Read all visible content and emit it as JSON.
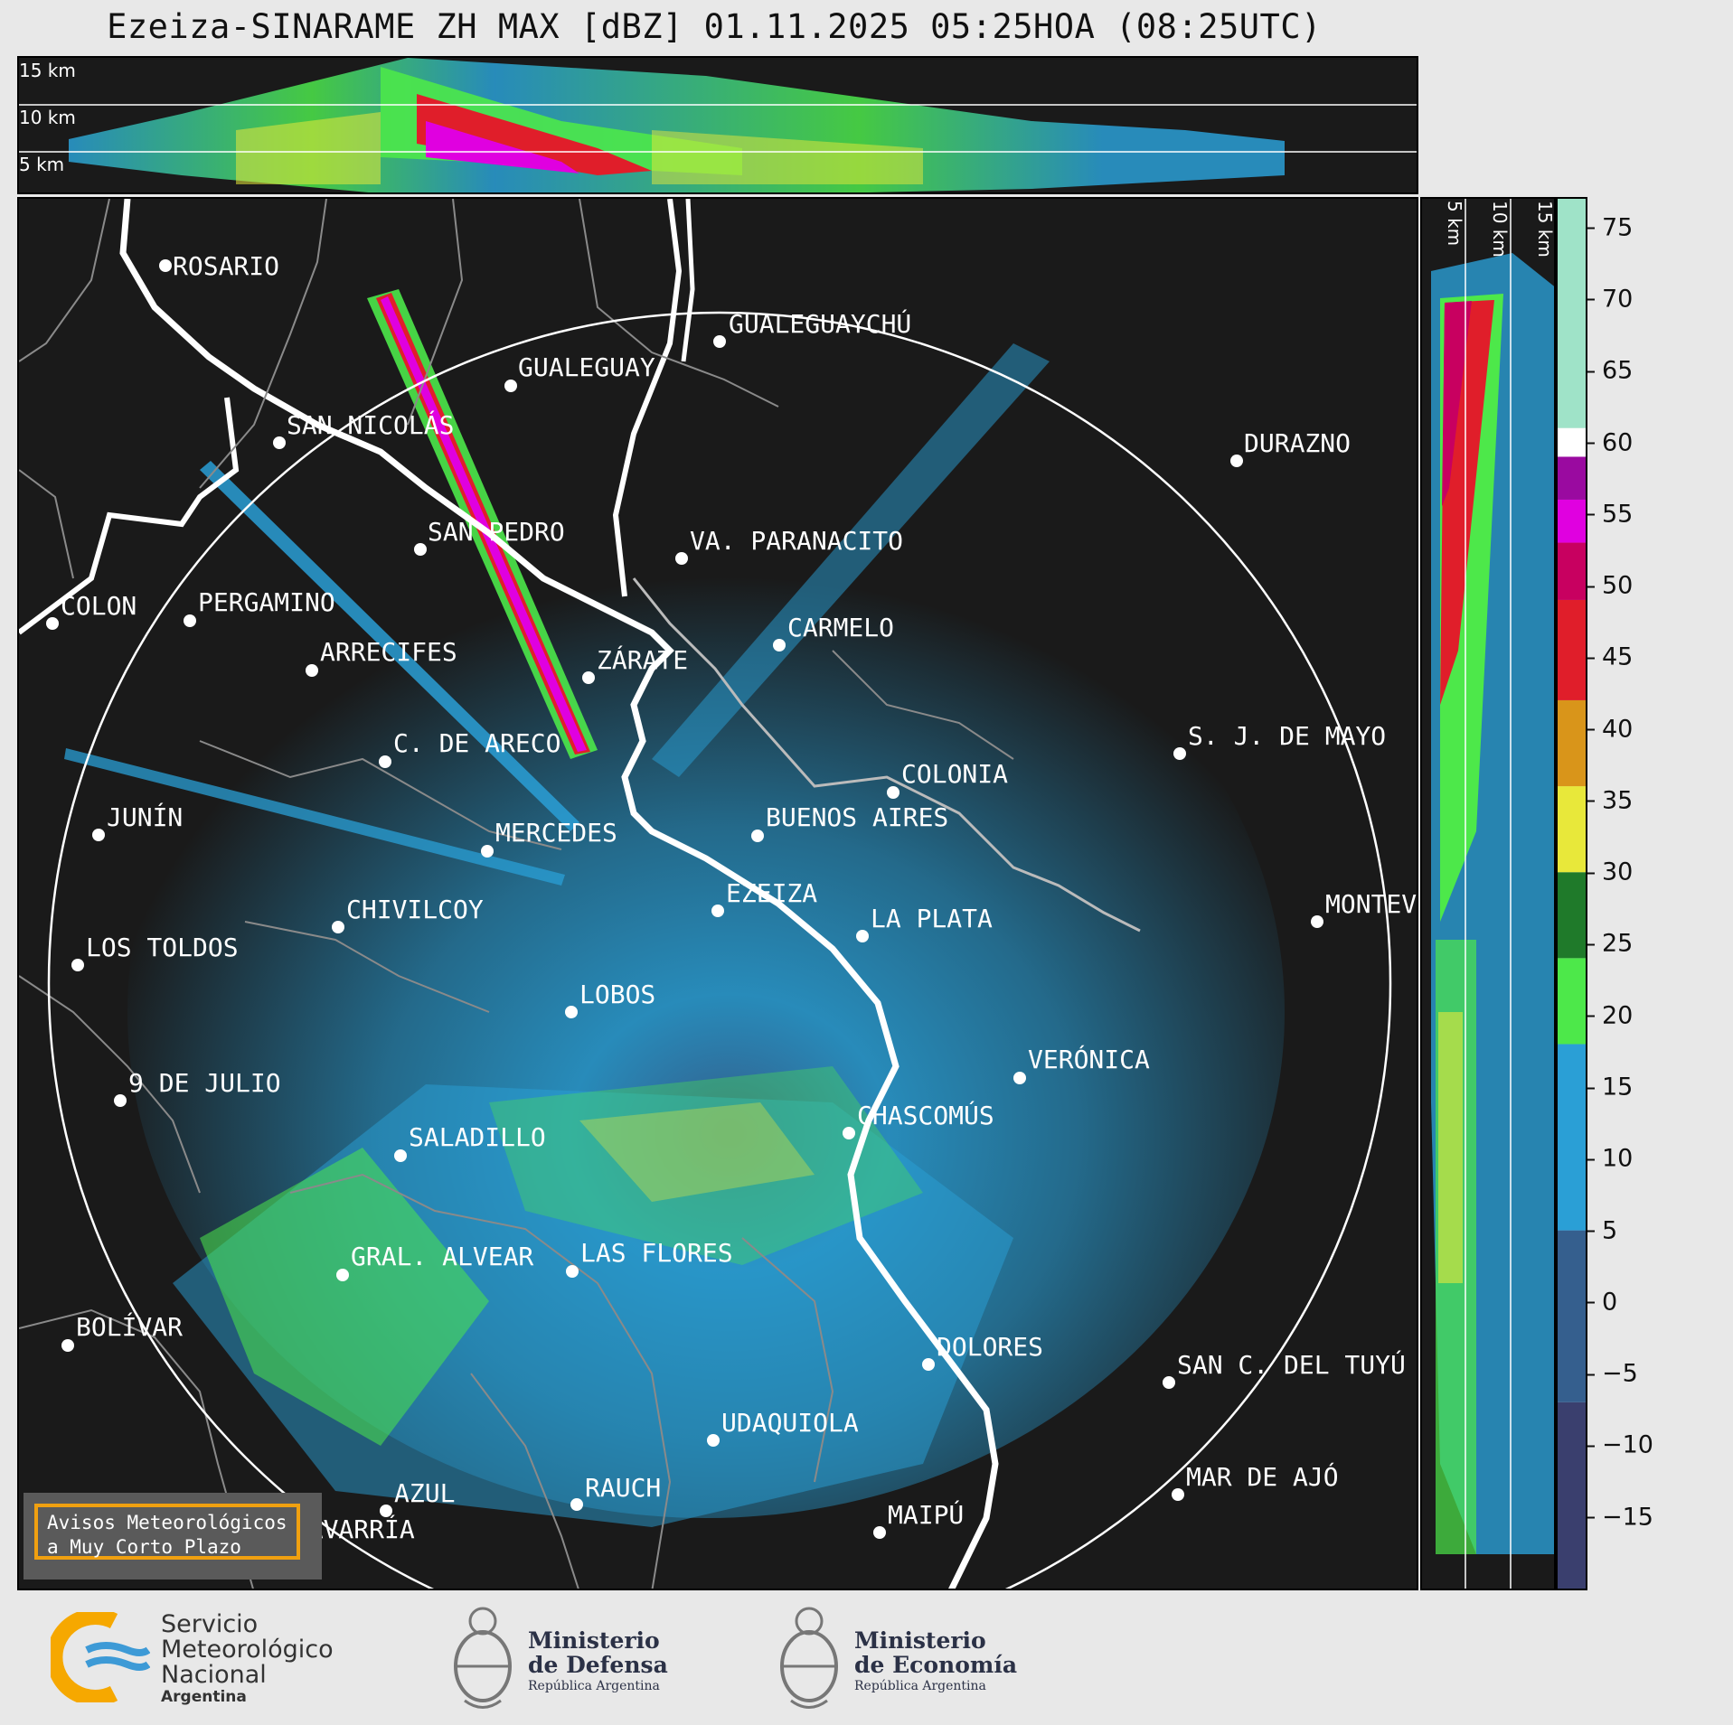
{
  "title": "Ezeiza-SINARAME ZH MAX [dBZ] 01.11.2025 05:25HOA (08:25UTC)",
  "top_section": {
    "height_labels": [
      "15 km",
      "10 km",
      "5 km"
    ]
  },
  "right_section": {
    "height_labels": [
      "5 km",
      "10 km",
      "15 km"
    ]
  },
  "colorbar": {
    "unit": "dBZ",
    "ticks": [
      "75",
      "70",
      "65",
      "60",
      "55",
      "50",
      "45",
      "40",
      "35",
      "30",
      "25",
      "20",
      "15",
      "10",
      "5",
      "0",
      "−5",
      "−10",
      "−15"
    ],
    "range": [
      -20,
      77
    ],
    "bands": [
      {
        "from": -20,
        "to": -7,
        "color": "#3a3f6e"
      },
      {
        "from": -7,
        "to": 5,
        "color": "#355f8e"
      },
      {
        "from": 5,
        "to": 18,
        "color": "#2a9fd6"
      },
      {
        "from": 18,
        "to": 24,
        "color": "#4de84a"
      },
      {
        "from": 24,
        "to": 30,
        "color": "#1f7a2a"
      },
      {
        "from": 30,
        "to": 36,
        "color": "#e8e83a"
      },
      {
        "from": 36,
        "to": 42,
        "color": "#d9951a"
      },
      {
        "from": 42,
        "to": 49,
        "color": "#e01e2a"
      },
      {
        "from": 49,
        "to": 53,
        "color": "#c80060"
      },
      {
        "from": 53,
        "to": 56,
        "color": "#e000e0"
      },
      {
        "from": 56,
        "to": 59,
        "color": "#9a0aa0"
      },
      {
        "from": 59,
        "to": 61,
        "color": "#ffffff"
      },
      {
        "from": 61,
        "to": 77,
        "color": "#9fe3c8"
      }
    ]
  },
  "cities": [
    {
      "name": "ROSARIO"
    },
    {
      "name": "GUALEGUAYCHÚ"
    },
    {
      "name": "GUALEGUAY"
    },
    {
      "name": "SAN NICOLÁS"
    },
    {
      "name": "DURAZNO"
    },
    {
      "name": "SAN PEDRO"
    },
    {
      "name": "VA. PARANACITO"
    },
    {
      "name": "COLON"
    },
    {
      "name": "PERGAMINO"
    },
    {
      "name": "CARMELO"
    },
    {
      "name": "ARRECIFES"
    },
    {
      "name": "ZÁRATE"
    },
    {
      "name": "S. J. DE MAYO"
    },
    {
      "name": "C. DE ARECO"
    },
    {
      "name": "COLONIA"
    },
    {
      "name": "JUNÍN"
    },
    {
      "name": "BUENOS AIRES"
    },
    {
      "name": "MERCEDES"
    },
    {
      "name": "MONTEV"
    },
    {
      "name": "EZEIZA"
    },
    {
      "name": "CHIVILCOY"
    },
    {
      "name": "LA PLATA"
    },
    {
      "name": "LOS TOLDOS"
    },
    {
      "name": "LOBOS"
    },
    {
      "name": "VERÓNICA"
    },
    {
      "name": "9 DE JULIO"
    },
    {
      "name": "CHASCOMÚS"
    },
    {
      "name": "SALADILLO"
    },
    {
      "name": "GRAL. ALVEAR"
    },
    {
      "name": "LAS FLORES"
    },
    {
      "name": "BOLÍVAR"
    },
    {
      "name": "DOLORES"
    },
    {
      "name": "SAN C. DEL TUYÚ"
    },
    {
      "name": "UDAQUIOLA"
    },
    {
      "name": "MAR DE AJÓ"
    },
    {
      "name": "AZUL"
    },
    {
      "name": "RAUCH"
    },
    {
      "name": "OLAVARRÍA"
    },
    {
      "name": "MAIPÚ"
    }
  ],
  "warning_box": {
    "line1": "Avisos Meteorológicos",
    "line2": "a Muy Corto Plazo"
  },
  "footer": {
    "smn": {
      "line1": "Servicio",
      "line2": "Meteorológico",
      "line3": "Nacional",
      "line4": "Argentina"
    },
    "defensa": {
      "line1": "Ministerio",
      "line2": "de Defensa",
      "line3": "República Argentina"
    },
    "economia": {
      "line1": "Ministerio",
      "line2": "de Economía",
      "line3": "República Argentina"
    }
  },
  "colors": {
    "panel_bg": "#1a1a1a",
    "coast": "#ffffff",
    "borders": "#8a8a8a",
    "range_ring": "#ffffff",
    "warning_border": "#f0a010"
  }
}
